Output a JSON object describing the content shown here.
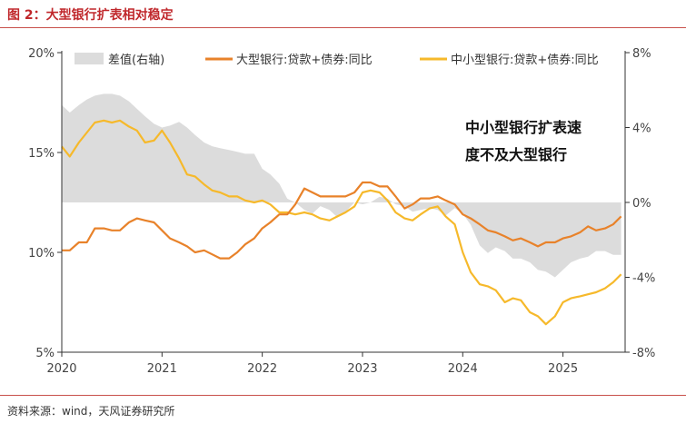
{
  "figure": {
    "title": "图 2：大型银行扩表相对稳定",
    "source": "资料来源：wind，天风证券研究所"
  },
  "chart_data": {
    "type": "line",
    "title": "图 2：大型银行扩表相对稳定",
    "x_labels": [
      "2020",
      "2021",
      "2022",
      "2023",
      "2024",
      "2025"
    ],
    "x_range": [
      2020.0,
      2025.62
    ],
    "left_axis": {
      "ticks": [
        "20%",
        "15%",
        "10%",
        "5%"
      ],
      "range": [
        5,
        20
      ]
    },
    "right_axis": {
      "ticks": [
        "8%",
        "4%",
        "0%",
        "-4%",
        "-8%"
      ],
      "range": [
        -8,
        8
      ]
    },
    "annotation": [
      "中小型银行扩表速",
      "度不及大型银行"
    ],
    "colors": {
      "diff": "#dcdcdc",
      "large": "#e8822a",
      "small": "#f6b92b"
    },
    "series": [
      {
        "name": "差值(右轴)",
        "axis": "right",
        "kind": "area",
        "x": [
          2020.0,
          2020.08,
          2020.17,
          2020.25,
          2020.33,
          2020.42,
          2020.5,
          2020.58,
          2020.67,
          2020.75,
          2020.83,
          2020.92,
          2021.0,
          2021.08,
          2021.17,
          2021.25,
          2021.33,
          2021.42,
          2021.5,
          2021.58,
          2021.67,
          2021.75,
          2021.83,
          2021.92,
          2022.0,
          2022.08,
          2022.17,
          2022.25,
          2022.33,
          2022.42,
          2022.5,
          2022.58,
          2022.67,
          2022.75,
          2022.83,
          2022.92,
          2023.0,
          2023.08,
          2023.17,
          2023.25,
          2023.33,
          2023.42,
          2023.5,
          2023.58,
          2023.67,
          2023.75,
          2023.83,
          2023.92,
          2024.0,
          2024.08,
          2024.17,
          2024.25,
          2024.33,
          2024.42,
          2024.5,
          2024.58,
          2024.67,
          2024.75,
          2024.83,
          2024.92,
          2025.0,
          2025.08,
          2025.17,
          2025.25,
          2025.33,
          2025.42,
          2025.5,
          2025.58
        ],
        "values": [
          5.2,
          4.8,
          5.2,
          5.5,
          5.7,
          5.8,
          5.8,
          5.7,
          5.4,
          5.0,
          4.6,
          4.2,
          4.0,
          4.1,
          4.3,
          4.0,
          3.6,
          3.2,
          3.0,
          2.9,
          2.8,
          2.7,
          2.6,
          2.6,
          1.8,
          1.5,
          1.0,
          0.2,
          0.0,
          -0.4,
          -0.6,
          -0.2,
          -0.4,
          -0.8,
          -0.5,
          0.0,
          -0.1,
          0.0,
          0.3,
          0.2,
          -0.1,
          -0.2,
          -0.5,
          -0.4,
          -0.3,
          -0.4,
          -0.7,
          -0.3,
          -0.6,
          -1.2,
          -2.3,
          -2.7,
          -2.4,
          -2.6,
          -3.0,
          -3.0,
          -3.2,
          -3.6,
          -3.7,
          -4.0,
          -3.6,
          -3.2,
          -3.0,
          -2.9,
          -2.6,
          -2.6,
          -2.8,
          -2.8
        ]
      },
      {
        "name": "大型银行:贷款+债券:同比",
        "axis": "left",
        "kind": "line",
        "x": [
          2020.0,
          2020.08,
          2020.17,
          2020.25,
          2020.33,
          2020.42,
          2020.5,
          2020.58,
          2020.67,
          2020.75,
          2020.83,
          2020.92,
          2021.0,
          2021.08,
          2021.17,
          2021.25,
          2021.33,
          2021.42,
          2021.5,
          2021.58,
          2021.67,
          2021.75,
          2021.83,
          2021.92,
          2022.0,
          2022.08,
          2022.17,
          2022.25,
          2022.33,
          2022.42,
          2022.5,
          2022.58,
          2022.67,
          2022.75,
          2022.83,
          2022.92,
          2023.0,
          2023.08,
          2023.17,
          2023.25,
          2023.33,
          2023.42,
          2023.5,
          2023.58,
          2023.67,
          2023.75,
          2023.83,
          2023.92,
          2024.0,
          2024.08,
          2024.17,
          2024.25,
          2024.33,
          2024.42,
          2024.5,
          2024.58,
          2024.67,
          2024.75,
          2024.83,
          2024.92,
          2025.0,
          2025.08,
          2025.17,
          2025.25,
          2025.33,
          2025.42,
          2025.5,
          2025.58
        ],
        "values": [
          10.1,
          10.1,
          10.5,
          10.5,
          11.2,
          11.2,
          11.1,
          11.1,
          11.5,
          11.7,
          11.6,
          11.5,
          11.1,
          10.7,
          10.5,
          10.3,
          10.0,
          10.1,
          9.9,
          9.7,
          9.7,
          10.0,
          10.4,
          10.7,
          11.2,
          11.5,
          11.9,
          11.9,
          12.4,
          13.2,
          13.0,
          12.8,
          12.8,
          12.8,
          12.8,
          13.0,
          13.5,
          13.5,
          13.3,
          13.3,
          12.8,
          12.2,
          12.4,
          12.7,
          12.7,
          12.8,
          12.6,
          12.4,
          11.9,
          11.7,
          11.4,
          11.1,
          11.0,
          10.8,
          10.6,
          10.7,
          10.5,
          10.3,
          10.5,
          10.5,
          10.7,
          10.8,
          11.0,
          11.3,
          11.1,
          11.2,
          11.4,
          11.8
        ]
      },
      {
        "name": "中小型银行:贷款+债券:同比",
        "axis": "left",
        "kind": "line",
        "x": [
          2020.0,
          2020.08,
          2020.17,
          2020.25,
          2020.33,
          2020.42,
          2020.5,
          2020.58,
          2020.67,
          2020.75,
          2020.83,
          2020.92,
          2021.0,
          2021.08,
          2021.17,
          2021.25,
          2021.33,
          2021.42,
          2021.5,
          2021.58,
          2021.67,
          2021.75,
          2021.83,
          2021.92,
          2022.0,
          2022.08,
          2022.17,
          2022.25,
          2022.33,
          2022.42,
          2022.5,
          2022.58,
          2022.67,
          2022.75,
          2022.83,
          2022.92,
          2023.0,
          2023.08,
          2023.17,
          2023.25,
          2023.33,
          2023.42,
          2023.5,
          2023.58,
          2023.67,
          2023.75,
          2023.83,
          2023.92,
          2024.0,
          2024.08,
          2024.17,
          2024.25,
          2024.33,
          2024.42,
          2024.5,
          2024.58,
          2024.67,
          2024.75,
          2024.83,
          2024.92,
          2025.0,
          2025.08,
          2025.17,
          2025.25,
          2025.33,
          2025.42,
          2025.5,
          2025.58
        ],
        "values": [
          15.3,
          14.8,
          15.5,
          16.0,
          16.5,
          16.6,
          16.5,
          16.6,
          16.3,
          16.1,
          15.5,
          15.6,
          16.1,
          15.5,
          14.7,
          13.9,
          13.8,
          13.4,
          13.1,
          13.0,
          12.8,
          12.8,
          12.6,
          12.5,
          12.6,
          12.4,
          12.0,
          12.0,
          11.9,
          12.0,
          11.9,
          11.7,
          11.6,
          11.8,
          12.0,
          12.3,
          13.0,
          13.1,
          13.0,
          12.6,
          12.0,
          11.7,
          11.6,
          11.9,
          12.2,
          12.3,
          11.8,
          11.4,
          10.0,
          9.0,
          8.4,
          8.3,
          8.1,
          7.5,
          7.7,
          7.6,
          7.0,
          6.8,
          6.4,
          6.8,
          7.5,
          7.7,
          7.8,
          7.9,
          8.0,
          8.2,
          8.5,
          8.9
        ]
      }
    ]
  }
}
